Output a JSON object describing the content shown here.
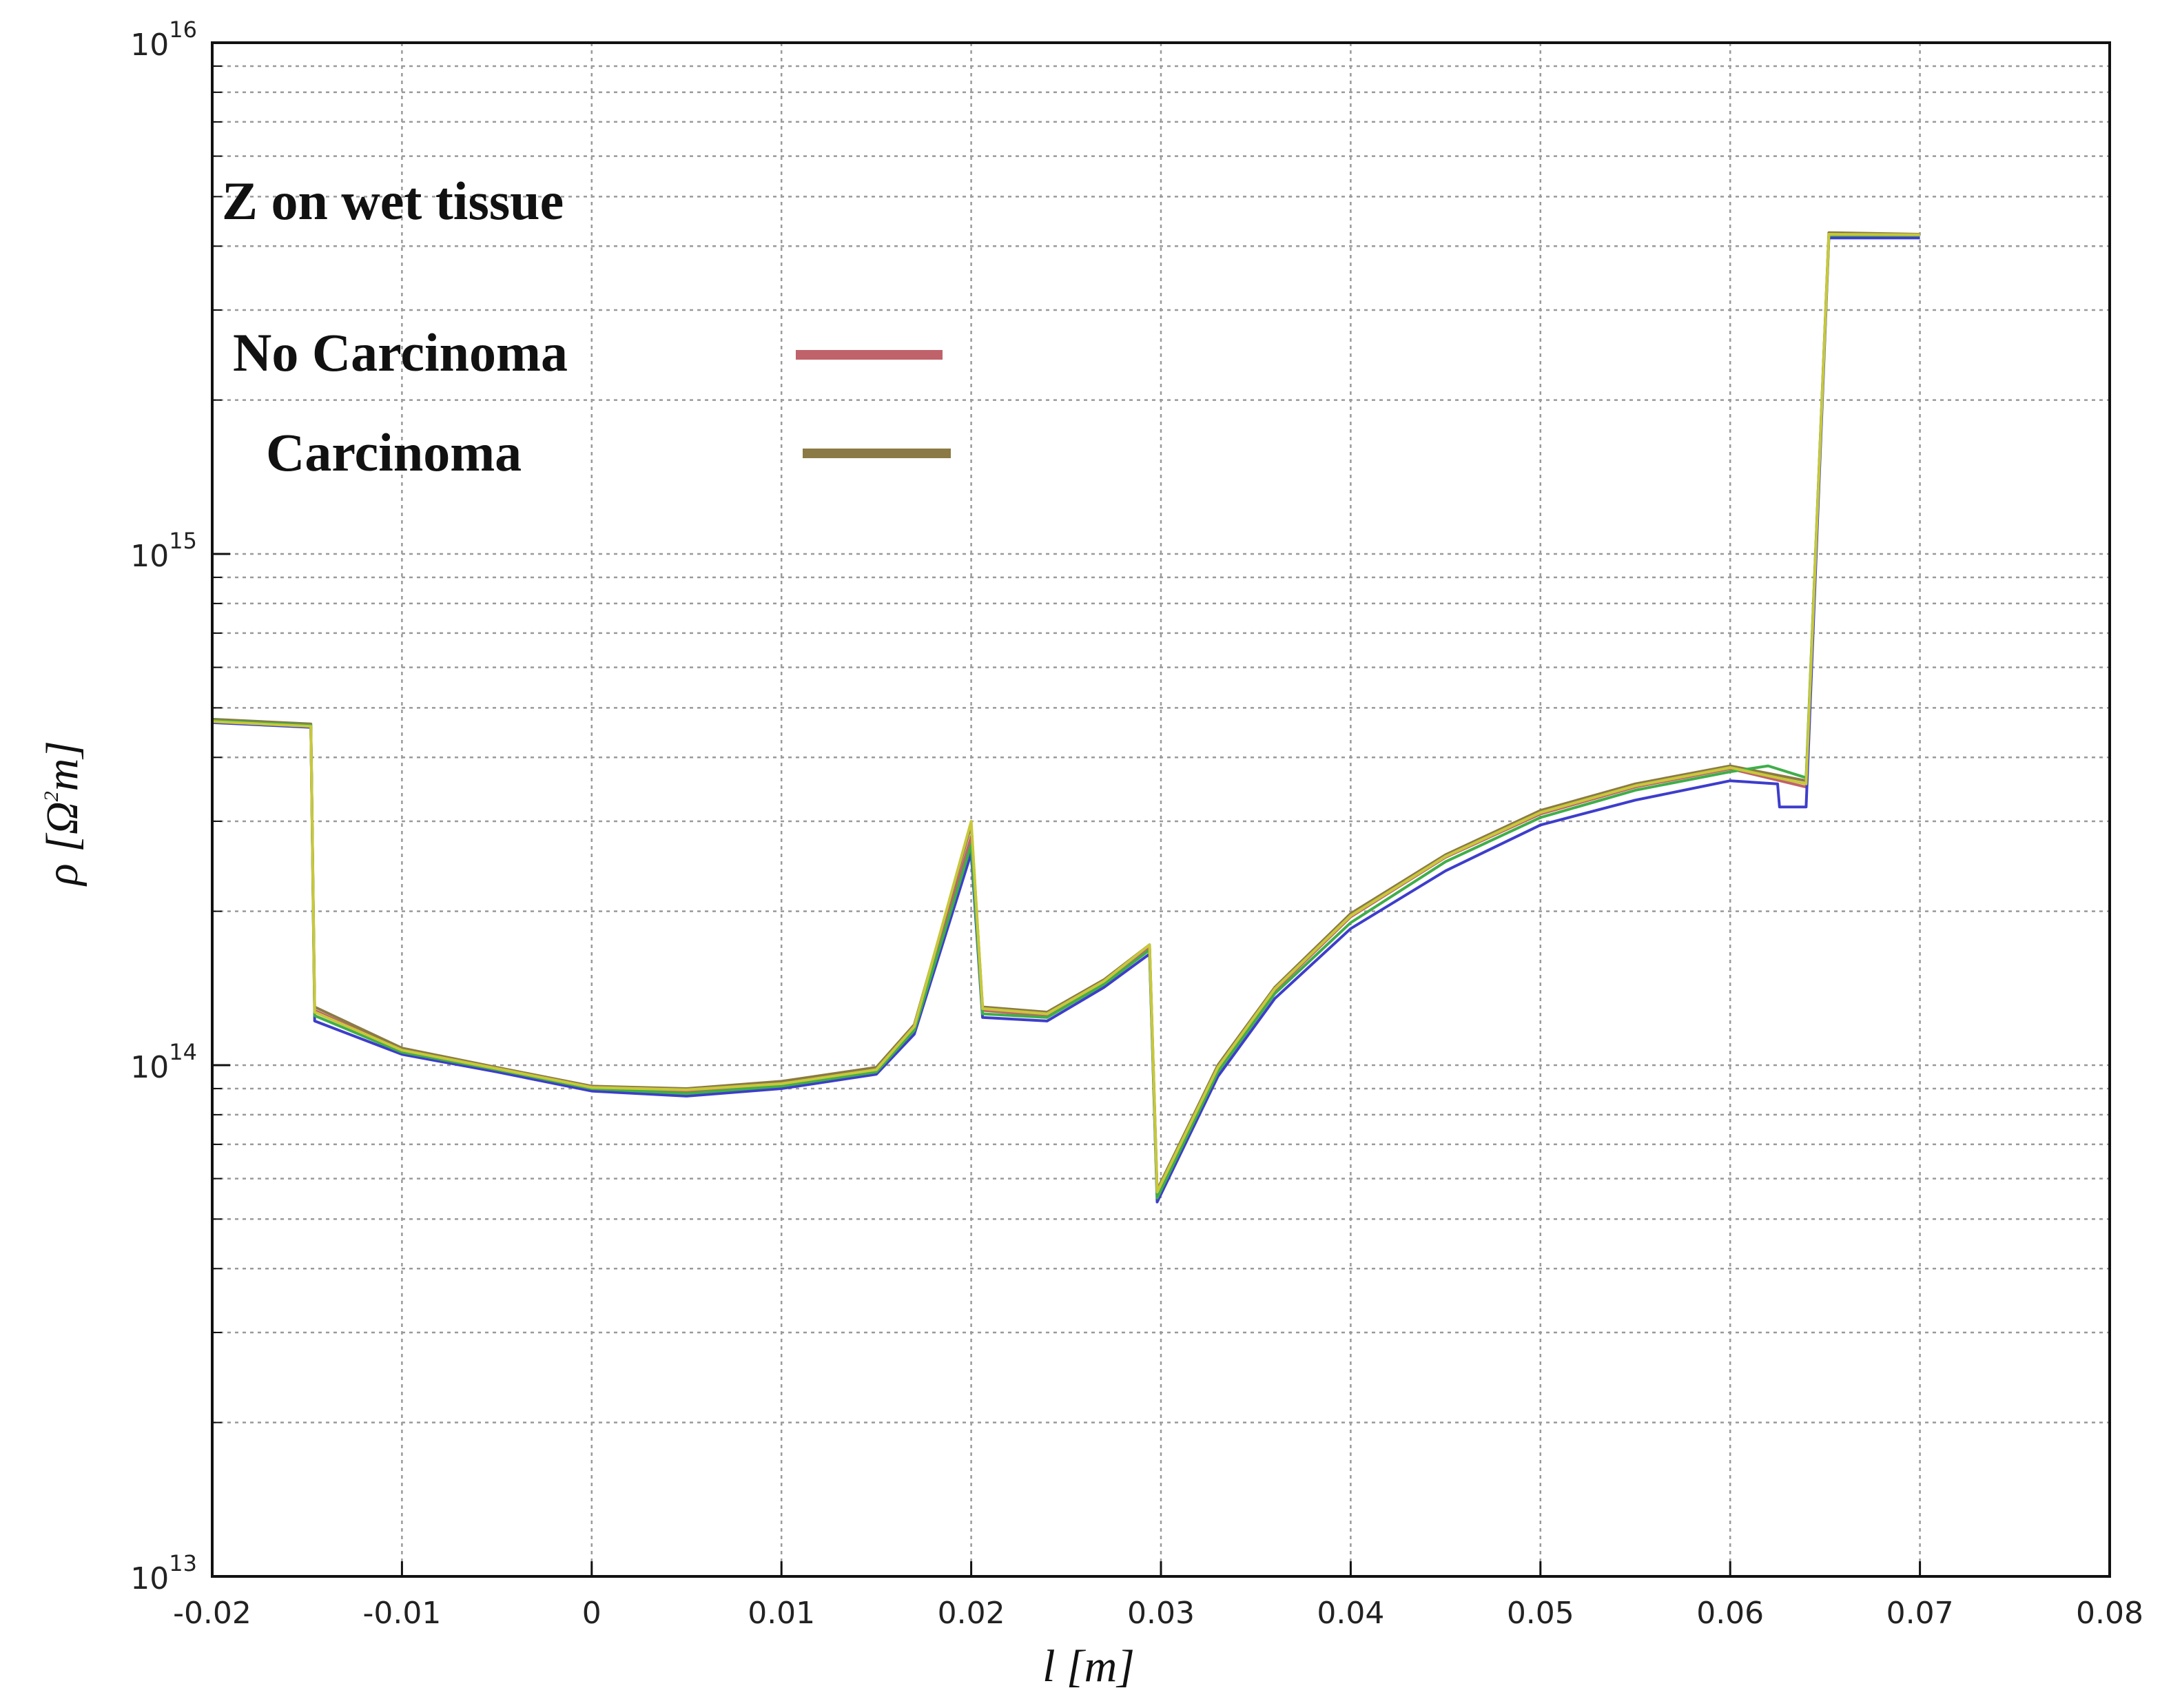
{
  "chart_data": {
    "type": "line",
    "title": "",
    "xlabel": "l [m]",
    "ylabel_parts": {
      "prefix": "ρ [Ω",
      "sup": "2",
      "suffix": "m]"
    },
    "xlim": [
      -0.02,
      0.08
    ],
    "ylim": [
      10000000000000.0,
      1e+16
    ],
    "yscale": "log",
    "grid": true,
    "x_ticks": [
      "-0.02",
      "-0.01",
      "0",
      "0.01",
      "0.02",
      "0.03",
      "0.04",
      "0.05",
      "0.06",
      "0.07",
      "0.08"
    ],
    "y_ticks": [
      {
        "base": "10",
        "exp": "13",
        "value": 10000000000000.0
      },
      {
        "base": "10",
        "exp": "14",
        "value": 100000000000000.0
      },
      {
        "base": "10",
        "exp": "15",
        "value": 1000000000000000.0
      },
      {
        "base": "10",
        "exp": "16",
        "value": 1e+16
      }
    ],
    "annotation": "Z on wet tissue",
    "legend": [
      {
        "label": "No Carcinoma",
        "color": "#c0626a"
      },
      {
        "label": "Carcinoma",
        "color": "#8b7a45"
      }
    ],
    "series": [
      {
        "color": "#c0626a",
        "points": [
          [
            -0.02,
            470000000000000.0
          ],
          [
            -0.0148,
            460000000000000.0
          ],
          [
            -0.0146,
            128000000000000.0
          ],
          [
            -0.01,
            107000000000000.0
          ],
          [
            -0.005,
            98000000000000.0
          ],
          [
            0,
            90000000000000.0
          ],
          [
            0.005,
            89000000000000.0
          ],
          [
            0.01,
            92000000000000.0
          ],
          [
            0.015,
            98000000000000.0
          ],
          [
            0.017,
            118000000000000.0
          ],
          [
            0.02,
            280000000000000.0
          ],
          [
            0.0206,
            128000000000000.0
          ],
          [
            0.024,
            125000000000000.0
          ],
          [
            0.027,
            145000000000000.0
          ],
          [
            0.0294,
            170000000000000.0
          ],
          [
            0.0298,
            56000000000000.0
          ],
          [
            0.033,
            98000000000000.0
          ],
          [
            0.036,
            140000000000000.0
          ],
          [
            0.04,
            195000000000000.0
          ],
          [
            0.045,
            255000000000000.0
          ],
          [
            0.05,
            310000000000000.0
          ],
          [
            0.055,
            350000000000000.0
          ],
          [
            0.06,
            380000000000000.0
          ],
          [
            0.064,
            350000000000000.0
          ],
          [
            0.0652,
            4200000000000000.0
          ],
          [
            0.07,
            4200000000000000.0
          ]
        ]
      },
      {
        "color": "#8b7a45",
        "points": [
          [
            -0.02,
            475000000000000.0
          ],
          [
            -0.0148,
            465000000000000.0
          ],
          [
            -0.0146,
            130000000000000.0
          ],
          [
            -0.01,
            108000000000000.0
          ],
          [
            -0.005,
            99000000000000.0
          ],
          [
            0,
            91000000000000.0
          ],
          [
            0.005,
            90000000000000.0
          ],
          [
            0.01,
            93000000000000.0
          ],
          [
            0.015,
            99000000000000.0
          ],
          [
            0.017,
            120000000000000.0
          ],
          [
            0.02,
            295000000000000.0
          ],
          [
            0.0206,
            130000000000000.0
          ],
          [
            0.024,
            127000000000000.0
          ],
          [
            0.027,
            147000000000000.0
          ],
          [
            0.0294,
            172000000000000.0
          ],
          [
            0.0298,
            57000000000000.0
          ],
          [
            0.033,
            100000000000000.0
          ],
          [
            0.036,
            142000000000000.0
          ],
          [
            0.04,
            198000000000000.0
          ],
          [
            0.045,
            258000000000000.0
          ],
          [
            0.05,
            315000000000000.0
          ],
          [
            0.055,
            355000000000000.0
          ],
          [
            0.06,
            385000000000000.0
          ],
          [
            0.064,
            360000000000000.0
          ],
          [
            0.0652,
            4250000000000000.0
          ],
          [
            0.07,
            4220000000000000.0
          ]
        ]
      },
      {
        "color": "#3d3dcc",
        "points": [
          [
            -0.02,
            468000000000000.0
          ],
          [
            -0.0148,
            458000000000000.0
          ],
          [
            -0.0146,
            122000000000000.0
          ],
          [
            -0.01,
            105000000000000.0
          ],
          [
            -0.005,
            97000000000000.0
          ],
          [
            0,
            89000000000000.0
          ],
          [
            0.005,
            87000000000000.0
          ],
          [
            0.01,
            90000000000000.0
          ],
          [
            0.015,
            96000000000000.0
          ],
          [
            0.017,
            115000000000000.0
          ],
          [
            0.02,
            260000000000000.0
          ],
          [
            0.0206,
            124000000000000.0
          ],
          [
            0.024,
            122000000000000.0
          ],
          [
            0.027,
            142000000000000.0
          ],
          [
            0.0294,
            165000000000000.0
          ],
          [
            0.0298,
            54000000000000.0
          ],
          [
            0.033,
            95000000000000.0
          ],
          [
            0.036,
            135000000000000.0
          ],
          [
            0.04,
            185000000000000.0
          ],
          [
            0.045,
            240000000000000.0
          ],
          [
            0.05,
            295000000000000.0
          ],
          [
            0.055,
            330000000000000.0
          ],
          [
            0.06,
            360000000000000.0
          ],
          [
            0.0625,
            355000000000000.0
          ],
          [
            0.0626,
            320000000000000.0
          ],
          [
            0.064,
            320000000000000.0
          ],
          [
            0.0652,
            4150000000000000.0
          ],
          [
            0.07,
            4150000000000000.0
          ]
        ]
      },
      {
        "color": "#3fae4a",
        "points": [
          [
            -0.02,
            472000000000000.0
          ],
          [
            -0.0148,
            462000000000000.0
          ],
          [
            -0.0146,
            125000000000000.0
          ],
          [
            -0.01,
            106000000000000.0
          ],
          [
            -0.005,
            98000000000000.0
          ],
          [
            0,
            90000000000000.0
          ],
          [
            0.005,
            88000000000000.0
          ],
          [
            0.01,
            91000000000000.0
          ],
          [
            0.015,
            97000000000000.0
          ],
          [
            0.017,
            117000000000000.0
          ],
          [
            0.02,
            270000000000000.0
          ],
          [
            0.0206,
            126000000000000.0
          ],
          [
            0.024,
            124000000000000.0
          ],
          [
            0.027,
            144000000000000.0
          ],
          [
            0.0294,
            168000000000000.0
          ],
          [
            0.0298,
            55000000000000.0
          ],
          [
            0.033,
            97000000000000.0
          ],
          [
            0.036,
            138000000000000.0
          ],
          [
            0.04,
            190000000000000.0
          ],
          [
            0.045,
            250000000000000.0
          ],
          [
            0.05,
            305000000000000.0
          ],
          [
            0.055,
            345000000000000.0
          ],
          [
            0.06,
            375000000000000.0
          ],
          [
            0.062,
            385000000000000.0
          ],
          [
            0.064,
            365000000000000.0
          ],
          [
            0.0652,
            4200000000000000.0
          ],
          [
            0.07,
            4200000000000000.0
          ]
        ]
      },
      {
        "color": "#c8c83a",
        "points": [
          [
            -0.02,
            470000000000000.0
          ],
          [
            -0.0148,
            460000000000000.0
          ],
          [
            -0.0146,
            127000000000000.0
          ],
          [
            -0.01,
            107000000000000.0
          ],
          [
            -0.005,
            98500000000000.0
          ],
          [
            0,
            90500000000000.0
          ],
          [
            0.005,
            89500000000000.0
          ],
          [
            0.01,
            92000000000000.0
          ],
          [
            0.015,
            98000000000000.0
          ],
          [
            0.017,
            119000000000000.0
          ],
          [
            0.02,
            300000000000000.0
          ],
          [
            0.0206,
            129000000000000.0
          ],
          [
            0.024,
            126000000000000.0
          ],
          [
            0.027,
            146000000000000.0
          ],
          [
            0.0294,
            172000000000000.0
          ],
          [
            0.0298,
            56500000000000.0
          ],
          [
            0.033,
            99000000000000.0
          ],
          [
            0.036,
            141000000000000.0
          ],
          [
            0.04,
            196000000000000.0
          ],
          [
            0.045,
            256000000000000.0
          ],
          [
            0.05,
            312000000000000.0
          ],
          [
            0.055,
            352000000000000.0
          ],
          [
            0.06,
            382000000000000.0
          ],
          [
            0.064,
            355000000000000.0
          ],
          [
            0.0652,
            4220000000000000.0
          ],
          [
            0.07,
            4210000000000000.0
          ]
        ]
      }
    ]
  }
}
